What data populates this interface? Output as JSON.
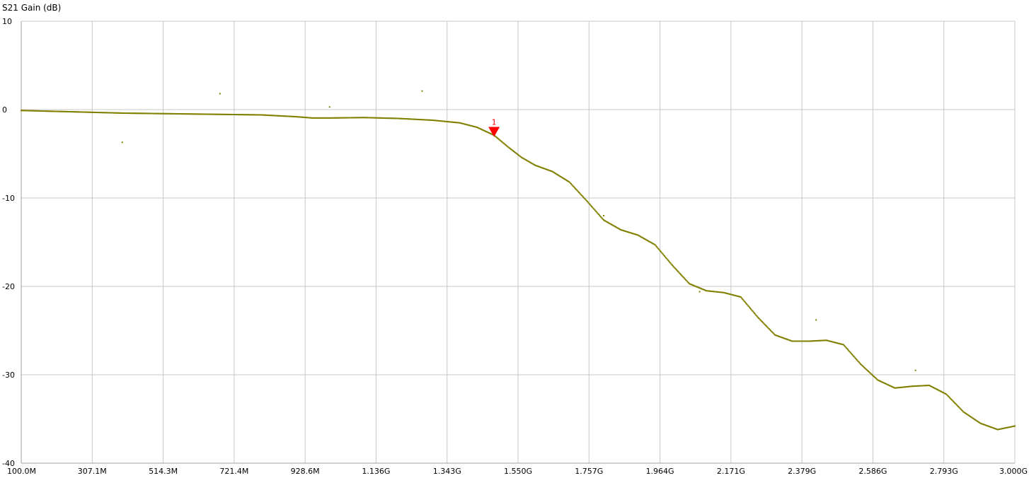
{
  "chart_data": {
    "type": "scatter",
    "title": "",
    "ylabel": "S21 Gain (dB)",
    "xlabel": "",
    "x_tick_labels": [
      "100.0M",
      "307.1M",
      "514.3M",
      "721.4M",
      "928.6M",
      "1.136G",
      "1.343G",
      "1.550G",
      "1.757G",
      "1.964G",
      "2.171G",
      "2.379G",
      "2.586G",
      "2.793G",
      "3.000G"
    ],
    "y_tick_labels": [
      "10",
      "0",
      "-10",
      "-20",
      "-30",
      "-40"
    ],
    "xlim_mhz": [
      100,
      3000
    ],
    "ylim": [
      -40,
      10
    ],
    "grid": true,
    "series_color": "#808000",
    "marker_color": "#ff0000",
    "trace": [
      [
        100,
        -0.1
      ],
      [
        200,
        -0.2
      ],
      [
        300,
        -0.3
      ],
      [
        400,
        -0.4
      ],
      [
        500,
        -0.45
      ],
      [
        600,
        -0.5
      ],
      [
        700,
        -0.55
      ],
      [
        800,
        -0.6
      ],
      [
        900,
        -0.8
      ],
      [
        950,
        -0.95
      ],
      [
        1000,
        -0.95
      ],
      [
        1100,
        -0.9
      ],
      [
        1200,
        -1.0
      ],
      [
        1300,
        -1.2
      ],
      [
        1380,
        -1.5
      ],
      [
        1430,
        -2.0
      ],
      [
        1480,
        -2.9
      ],
      [
        1520,
        -4.2
      ],
      [
        1560,
        -5.4
      ],
      [
        1600,
        -6.3
      ],
      [
        1650,
        -7.0
      ],
      [
        1700,
        -8.2
      ],
      [
        1750,
        -10.3
      ],
      [
        1800,
        -12.5
      ],
      [
        1850,
        -13.6
      ],
      [
        1900,
        -14.2
      ],
      [
        1950,
        -15.3
      ],
      [
        2000,
        -17.6
      ],
      [
        2050,
        -19.7
      ],
      [
        2100,
        -20.5
      ],
      [
        2150,
        -20.7
      ],
      [
        2200,
        -21.2
      ],
      [
        2250,
        -23.5
      ],
      [
        2300,
        -25.5
      ],
      [
        2350,
        -26.2
      ],
      [
        2400,
        -26.2
      ],
      [
        2450,
        -26.1
      ],
      [
        2500,
        -26.6
      ],
      [
        2550,
        -28.8
      ],
      [
        2600,
        -30.6
      ],
      [
        2650,
        -31.5
      ],
      [
        2700,
        -31.3
      ],
      [
        2750,
        -31.2
      ],
      [
        2800,
        -32.2
      ],
      [
        2850,
        -34.2
      ],
      [
        2900,
        -35.5
      ],
      [
        2950,
        -36.2
      ],
      [
        3000,
        -35.8
      ]
    ],
    "outliers": [
      [
        395,
        -3.7
      ],
      [
        680,
        1.8
      ],
      [
        1000,
        0.3
      ],
      [
        1270,
        2.1
      ],
      [
        1800,
        -12.0
      ],
      [
        2080,
        -20.6
      ],
      [
        2420,
        -23.8
      ],
      [
        2710,
        -29.5
      ]
    ],
    "marker": {
      "label": "1",
      "x_mhz": 1480,
      "y": -2.6
    }
  }
}
